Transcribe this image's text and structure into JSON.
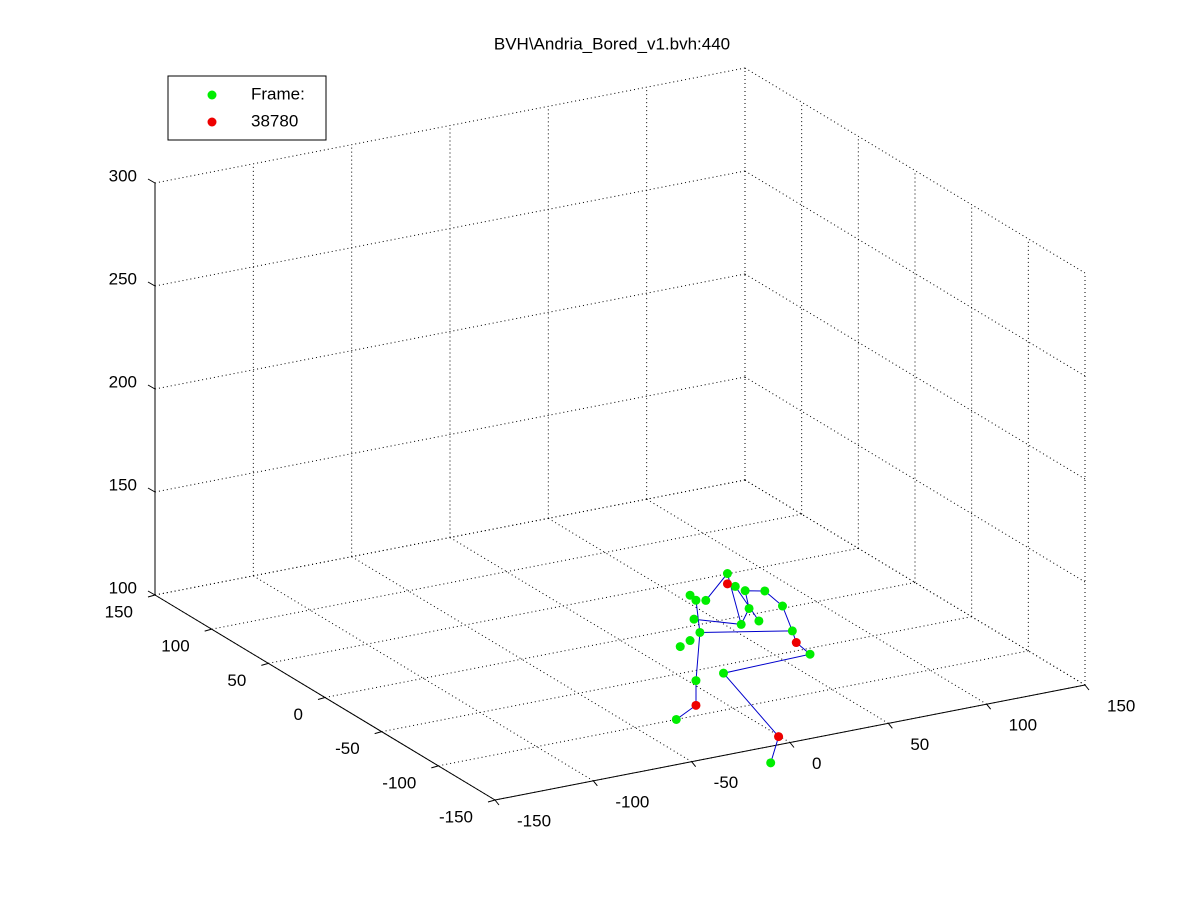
{
  "chart_data": {
    "type": "scatter3d",
    "title": "BVH\\Andria_Bored_v1.bvh:440",
    "xlim": [
      -150,
      150
    ],
    "ylim": [
      -150,
      150
    ],
    "zlim": [
      100,
      300
    ],
    "xticks": [
      -150,
      -100,
      -50,
      0,
      50,
      100,
      150
    ],
    "yticks": [
      -150,
      -100,
      -50,
      0,
      50,
      100,
      150
    ],
    "zticks": [
      100,
      150,
      200,
      250,
      300
    ],
    "grid": true,
    "legend": "upper left",
    "series": [
      {
        "name": "Frame:",
        "color": "#00ee00",
        "mode": "markers",
        "x": [
          -3,
          1,
          6,
          16,
          25,
          30,
          39,
          -5,
          19,
          8,
          4,
          13,
          -19,
          -20,
          -22,
          -27,
          -19,
          -29,
          -14,
          -17,
          -22
        ],
        "y": [
          -100,
          -100,
          -100,
          -100,
          -100,
          -100,
          -100,
          -100,
          -100,
          -100,
          -100,
          -100,
          -100,
          -100,
          -100,
          -100,
          -100,
          -100,
          -100,
          -100,
          -100
        ],
        "z": [
          166,
          159,
          156,
          154,
          145,
          132,
          119,
          118,
          70,
          147,
          140,
          140,
          156,
          147,
          137,
          135,
          117,
          100,
          155,
          140,
          159
        ]
      },
      {
        "name": "38780",
        "color": "#ee0000",
        "mode": "markers",
        "x": [
          -3,
          32,
          23,
          -19
        ],
        "y": [
          -100,
          -100,
          -100,
          -100
        ],
        "z": [
          161,
          126,
          82,
          105
        ]
      },
      {
        "color": "#0000cc",
        "mode": "line",
        "x": [
          -19,
          -17,
          -19,
          -19,
          -29,
          null,
          -17,
          30,
          32,
          39,
          -5,
          23,
          19,
          null,
          -20,
          4,
          -3,
          -14,
          null,
          4,
          8,
          6,
          16,
          25,
          30,
          null,
          1,
          13
        ],
        "y": [
          -100,
          -100,
          -100,
          -100,
          -100,
          null,
          -100,
          -100,
          -100,
          -100,
          -100,
          -100,
          -100,
          null,
          -100,
          -100,
          -100,
          -100,
          null,
          -100,
          -100,
          -100,
          -100,
          -100,
          -100,
          null,
          -100,
          -100
        ],
        "z": [
          156,
          140,
          117,
          105,
          100,
          null,
          140,
          132,
          126,
          119,
          118,
          82,
          70,
          null,
          147,
          140,
          166,
          155,
          null,
          140,
          147,
          156,
          154,
          145,
          132,
          null,
          159,
          140
        ]
      }
    ]
  }
}
